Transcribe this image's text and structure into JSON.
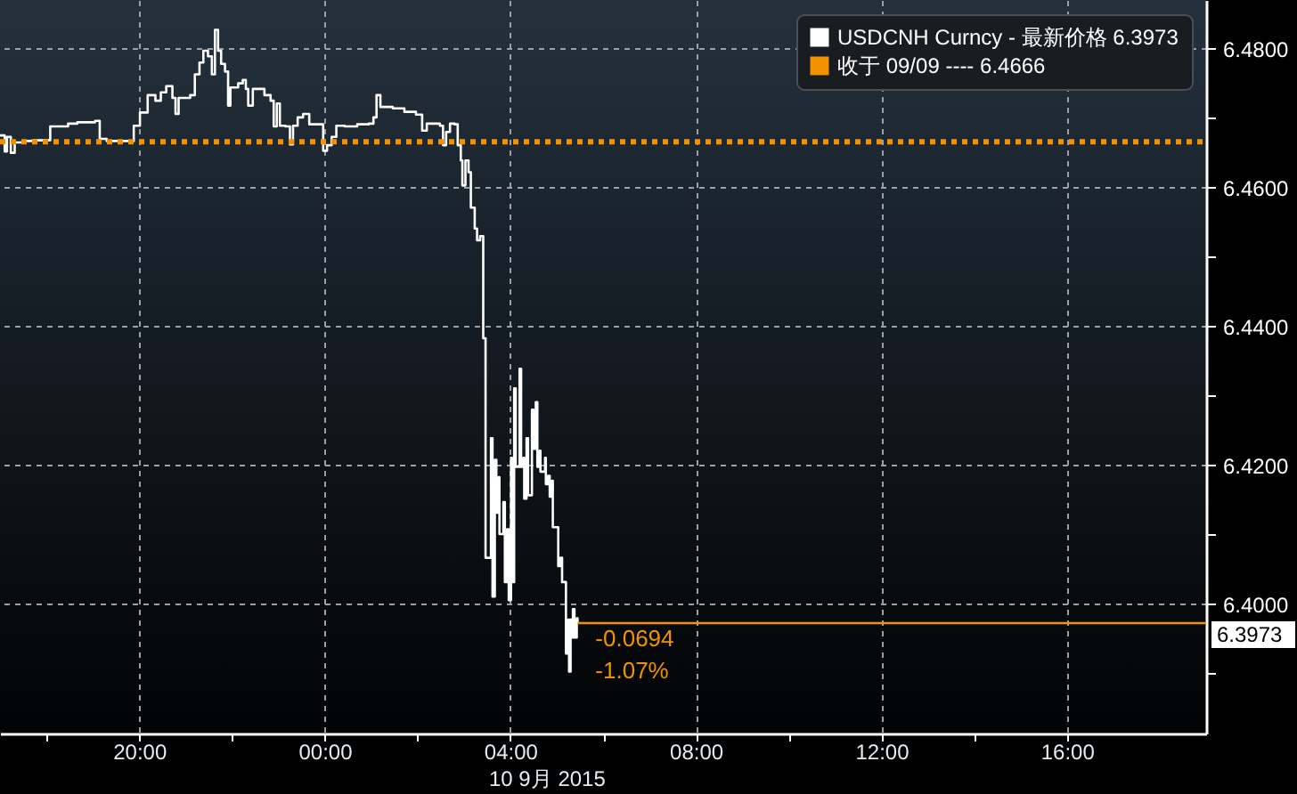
{
  "chart_data": {
    "type": "step",
    "xlabel": "10 9月 2015",
    "annotations": [
      {
        "text": "-0.0694",
        "x": "2015-09-10T05:27",
        "y": 6.3973
      },
      {
        "text": "-1.07%",
        "x": "2015-09-10T05:27",
        "y": 6.3973
      },
      {
        "text": "6.3973",
        "x": "2015-09-10T19:00",
        "y": 6.3973
      }
    ],
    "series": [
      {
        "name": "USDCNH Curncy - 最新价格 6.3973",
        "color": "#ffffff",
        "x": [
          "2015-09-09T17:00",
          "2015-09-09T17:06",
          "2015-09-09T17:09",
          "2015-09-09T17:14",
          "2015-09-09T17:19",
          "2015-09-09T17:30",
          "2015-09-09T17:42",
          "2015-09-09T18:05",
          "2015-09-09T18:28",
          "2015-09-09T18:40",
          "2015-09-09T19:03",
          "2015-09-09T19:09",
          "2015-09-09T19:18",
          "2015-09-09T19:53",
          "2015-09-09T20:01",
          "2015-09-09T20:11",
          "2015-09-09T20:21",
          "2015-09-09T20:28",
          "2015-09-09T20:35",
          "2015-09-09T20:43",
          "2015-09-09T20:47",
          "2015-09-09T20:51",
          "2015-09-09T21:06",
          "2015-09-09T21:12",
          "2015-09-09T21:18",
          "2015-09-09T21:23",
          "2015-09-09T21:29",
          "2015-09-09T21:34",
          "2015-09-09T21:38",
          "2015-09-09T21:42",
          "2015-09-09T21:46",
          "2015-09-09T21:51",
          "2015-09-09T21:55",
          "2015-09-09T21:58",
          "2015-09-09T22:08",
          "2015-09-09T22:14",
          "2015-09-09T22:18",
          "2015-09-09T22:21",
          "2015-09-09T22:27",
          "2015-09-09T22:42",
          "2015-09-09T22:50",
          "2015-09-09T22:54",
          "2015-09-09T22:58",
          "2015-09-09T23:02",
          "2015-09-09T23:09",
          "2015-09-09T23:15",
          "2015-09-09T23:19",
          "2015-09-09T23:25",
          "2015-09-09T23:32",
          "2015-09-09T23:40",
          "2015-09-09T23:58",
          "2015-09-10T00:03",
          "2015-09-10T00:09",
          "2015-09-10T00:15",
          "2015-09-10T00:26",
          "2015-09-10T00:42",
          "2015-09-10T00:57",
          "2015-09-10T01:03",
          "2015-09-10T01:07",
          "2015-09-10T01:12",
          "2015-09-10T01:28",
          "2015-09-10T01:43",
          "2015-09-10T01:58",
          "2015-09-10T02:06",
          "2015-09-10T02:12",
          "2015-09-10T02:29",
          "2015-09-10T02:33",
          "2015-09-10T02:37",
          "2015-09-10T02:42",
          "2015-09-10T02:48",
          "2015-09-10T02:52",
          "2015-09-10T02:56",
          "2015-09-10T02:58",
          "2015-09-10T03:02",
          "2015-09-10T03:06",
          "2015-09-10T03:09",
          "2015-09-10T03:14",
          "2015-09-10T03:17",
          "2015-09-10T03:21",
          "2015-09-10T03:25",
          "2015-09-10T03:28",
          "2015-09-10T03:35",
          "2015-09-10T03:37",
          "2015-09-10T03:40",
          "2015-09-10T03:42",
          "2015-09-10T03:45",
          "2015-09-10T03:46",
          "2015-09-10T03:51",
          "2015-09-10T03:53",
          "2015-09-10T03:56",
          "2015-09-10T03:58",
          "2015-09-10T04:01",
          "2015-09-10T04:02",
          "2015-09-10T04:05",
          "2015-09-10T04:07",
          "2015-09-10T04:12",
          "2015-09-10T04:14",
          "2015-09-10T04:17",
          "2015-09-10T04:18",
          "2015-09-10T04:21",
          "2015-09-10T04:23",
          "2015-09-10T04:28",
          "2015-09-10T04:30",
          "2015-09-10T04:33",
          "2015-09-10T04:35",
          "2015-09-10T04:38",
          "2015-09-10T04:39",
          "2015-09-10T04:45",
          "2015-09-10T04:46",
          "2015-09-10T04:49",
          "2015-09-10T04:51",
          "2015-09-10T04:54",
          "2015-09-10T04:55",
          "2015-09-10T05:02",
          "2015-09-10T05:05",
          "2015-09-10T05:07",
          "2015-09-10T05:12",
          "2015-09-10T05:15",
          "2015-09-10T05:16",
          "2015-09-10T05:18",
          "2015-09-10T05:20",
          "2015-09-10T05:21",
          "2015-09-10T05:23",
          "2015-09-10T05:26",
          "2015-09-10T05:27"
        ],
        "values": [
          6.4675,
          6.4652,
          6.4673,
          6.465,
          6.4665,
          6.4667,
          6.4668,
          6.4688,
          6.4692,
          6.4694,
          6.4696,
          6.467,
          6.4667,
          6.4689,
          6.4708,
          6.4733,
          6.4725,
          6.4737,
          6.4746,
          6.4729,
          6.4706,
          6.4729,
          6.4733,
          6.4763,
          6.478,
          6.4797,
          6.4789,
          6.4763,
          6.4827,
          6.4797,
          6.4778,
          6.4767,
          6.4718,
          6.4744,
          6.475,
          6.4755,
          6.4742,
          6.4718,
          6.4742,
          6.4733,
          6.4725,
          6.4688,
          6.4721,
          6.4689,
          6.4688,
          6.4662,
          6.4689,
          6.4701,
          6.4706,
          6.4691,
          6.4653,
          6.4661,
          6.4673,
          6.4689,
          6.4688,
          6.4691,
          6.4692,
          6.4701,
          6.4733,
          6.4716,
          6.4714,
          6.4709,
          6.4705,
          6.4682,
          6.4692,
          6.4689,
          6.4661,
          6.468,
          6.4692,
          6.4691,
          6.4661,
          6.4639,
          6.4603,
          6.4639,
          6.4622,
          6.4571,
          6.4541,
          6.4524,
          6.453,
          6.4383,
          6.4067,
          6.4239,
          6.4011,
          6.4208,
          6.4132,
          6.4183,
          6.4101,
          6.4147,
          6.4032,
          6.4108,
          6.4006,
          6.4211,
          6.4032,
          6.4311,
          6.4198,
          6.4339,
          6.4198,
          6.4211,
          6.4152,
          6.4239,
          6.4157,
          6.428,
          6.4224,
          6.4291,
          6.4198,
          6.4221,
          6.4191,
          6.4211,
          6.4173,
          6.4185,
          6.4155,
          6.4178,
          6.4111,
          6.4055,
          6.4067,
          6.4032,
          6.3929,
          6.3978,
          6.3903,
          6.3978,
          6.3952,
          6.3993,
          6.3952,
          6.398,
          6.3973
        ]
      },
      {
        "name": "收于 09/09 ---- 6.4666",
        "type": "line",
        "line_style": "dotted",
        "color": "#f39200",
        "x": [
          "2015-09-09T17:00",
          "2015-09-10T19:00"
        ],
        "values": [
          6.4666,
          6.4666
        ]
      },
      {
        "type": "line",
        "color": "#f39200",
        "x": [
          "2015-09-10T05:27",
          "2015-09-10T19:00"
        ],
        "values": [
          6.3973,
          6.3973
        ]
      }
    ],
    "xlim": [
      "2015-09-09T17:00",
      "2015-09-10T19:00"
    ],
    "xticks": [
      {
        "value": "2015-09-09T18:00",
        "label": null
      },
      {
        "value": "2015-09-09T20:00",
        "label": "20:00"
      },
      {
        "value": "2015-09-09T22:00",
        "label": null
      },
      {
        "value": "2015-09-10T00:00",
        "label": "00:00"
      },
      {
        "value": "2015-09-10T02:00",
        "label": null
      },
      {
        "value": "2015-09-10T04:00",
        "label": "04:00"
      },
      {
        "value": "2015-09-10T06:00",
        "label": null
      },
      {
        "value": "2015-09-10T08:00",
        "label": "08:00"
      },
      {
        "value": "2015-09-10T10:00",
        "label": null
      },
      {
        "value": "2015-09-10T12:00",
        "label": "12:00"
      },
      {
        "value": "2015-09-10T14:00",
        "label": null
      },
      {
        "value": "2015-09-10T16:00",
        "label": "16:00"
      }
    ],
    "ylim": [
      6.3814,
      6.487
    ],
    "yticks": [
      {
        "value": 6.39,
        "label": null
      },
      {
        "value": 6.4,
        "label": "6.4000"
      },
      {
        "value": 6.41,
        "label": null
      },
      {
        "value": 6.42,
        "label": "6.4200"
      },
      {
        "value": 6.43,
        "label": null
      },
      {
        "value": 6.44,
        "label": "6.4400"
      },
      {
        "value": 6.45,
        "label": null
      },
      {
        "value": 6.46,
        "label": "6.4600"
      },
      {
        "value": 6.47,
        "label": null
      },
      {
        "value": 6.48,
        "label": "6.4800"
      }
    ],
    "grid": true,
    "legend": "top right"
  }
}
